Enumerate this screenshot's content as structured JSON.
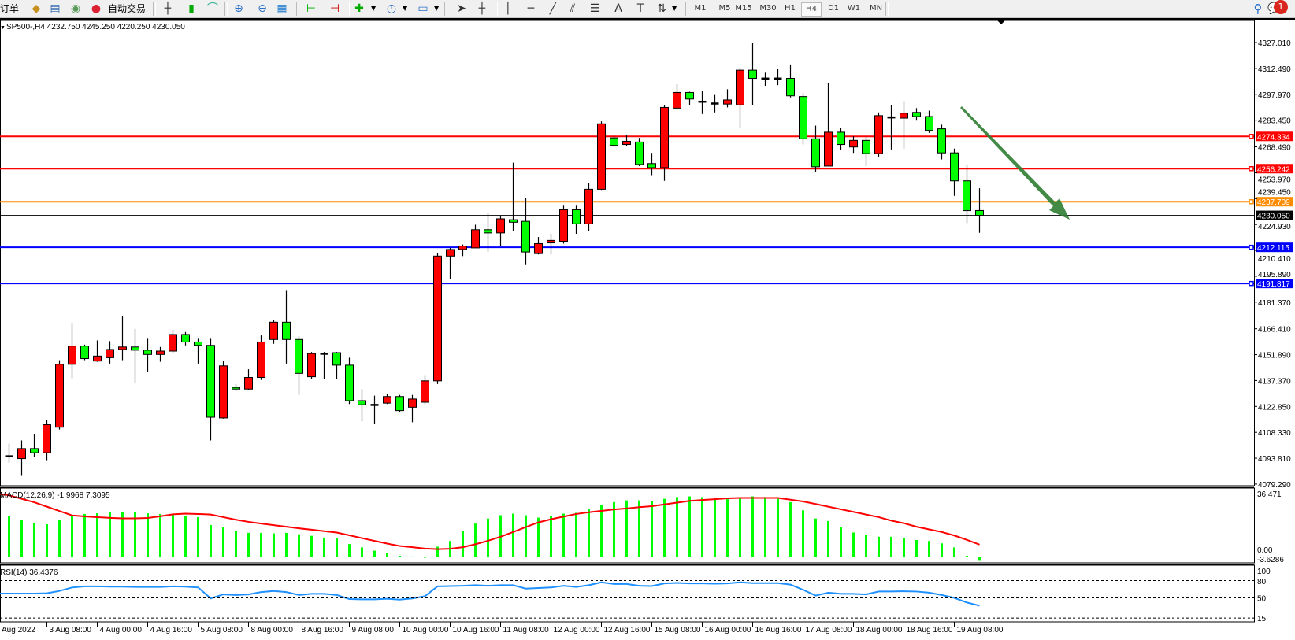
{
  "toolbar": {
    "new_order_label": "订单",
    "auto_trading_label": "自动交易",
    "periods": [
      "M1",
      "M5",
      "M15",
      "M30",
      "H1",
      "H4",
      "D1",
      "W1",
      "MN"
    ],
    "active_period": "H4",
    "notification_count": "1",
    "icons": [
      "book-icon",
      "terminal-icon",
      "signal-icon",
      "auto-trading-icon",
      "bar-chart-icon",
      "candlestick-icon",
      "line-chart-icon",
      "zoom-in-icon",
      "zoom-out-icon",
      "tile-windows-icon",
      "auto-scroll-icon",
      "chart-shift-icon",
      "new-chart-icon",
      "clock-icon",
      "template-icon",
      "cursor-icon",
      "crosshair-icon",
      "vertical-line-icon",
      "horizontal-line-icon",
      "trendline-icon",
      "equidistant-channel-icon",
      "fibonacci-icon",
      "text-icon",
      "text-label-icon",
      "arrows-icon",
      "search-icon",
      "chat-icon"
    ]
  },
  "chart": {
    "symbol_info": "SP500-,H4  4232.750 4245.250 4220.250 4230.050",
    "price_ticks": [
      "4327.010",
      "4312.490",
      "4297.970",
      "4283.450",
      "4268.490",
      "4253.970",
      "4239.450",
      "4224.930",
      "4210.410",
      "4195.890",
      "4181.370",
      "4166.410",
      "4151.890",
      "4137.370",
      "4122.850",
      "4108.330",
      "4093.810",
      "4079.290"
    ],
    "price_range": [
      4079.29,
      4327.01
    ],
    "bullish_color": "#ff0000",
    "bearish_color": "#00ff00",
    "levels": [
      {
        "price": 4274.334,
        "label": "4274.334",
        "color": "#ff0000"
      },
      {
        "price": 4256.242,
        "label": "4256.242",
        "color": "#ff0000"
      },
      {
        "price": 4237.709,
        "label": "4237.709",
        "color": "#ff8c00"
      },
      {
        "price": 4230.05,
        "label": "4230.050",
        "color": "#000000"
      },
      {
        "price": 4212.115,
        "label": "4212.115",
        "color": "#0000ff"
      },
      {
        "price": 4191.817,
        "label": "4191.817",
        "color": "#0000ff"
      }
    ],
    "arrow_color": "#2e7d32",
    "ohlc": [
      [
        4095.0,
        4102.0,
        4091.3,
        4095.0
      ],
      [
        4093.6,
        4103.8,
        4083.9,
        4099.2
      ],
      [
        4099.2,
        4107.5,
        4094.6,
        4096.9
      ],
      [
        4096.9,
        4115.4,
        4092.7,
        4112.6
      ],
      [
        4111.2,
        4148.8,
        4109.9,
        4146.5
      ],
      [
        4146.5,
        4169.7,
        4138.6,
        4156.7
      ],
      [
        4156.7,
        4157.5,
        4148.8,
        4149.7
      ],
      [
        4148.3,
        4159.9,
        4147.9,
        4151.1
      ],
      [
        4150.2,
        4159.5,
        4146.9,
        4154.8
      ],
      [
        4154.8,
        4173.4,
        4148.8,
        4156.2
      ],
      [
        4156.2,
        4166.4,
        4135.8,
        4154.4
      ],
      [
        4154.4,
        4160.8,
        4142.3,
        4152.0
      ],
      [
        4152.0,
        4156.2,
        4147.9,
        4153.9
      ],
      [
        4153.9,
        4165.9,
        4153.0,
        4163.2
      ],
      [
        4163.2,
        4164.6,
        4157.1,
        4159.0
      ],
      [
        4159.0,
        4160.8,
        4146.9,
        4157.1
      ],
      [
        4157.1,
        4160.8,
        4103.8,
        4116.8
      ],
      [
        4116.4,
        4148.3,
        4116.0,
        4145.6
      ],
      [
        4133.5,
        4135.4,
        4131.6,
        4132.6
      ],
      [
        4132.6,
        4143.7,
        4132.1,
        4139.1
      ],
      [
        4139.1,
        4162.7,
        4137.7,
        4159.0
      ],
      [
        4160.4,
        4171.5,
        4158.0,
        4170.1
      ],
      [
        4170.1,
        4187.7,
        4146.9,
        4160.4
      ],
      [
        4160.4,
        4162.2,
        4129.3,
        4141.4
      ],
      [
        4139.5,
        4153.4,
        4138.1,
        4152.5
      ],
      [
        4152.5,
        4153.4,
        4138.1,
        4152.5
      ],
      [
        4153.0,
        4153.4,
        4138.1,
        4146.0
      ],
      [
        4146.0,
        4150.2,
        4124.2,
        4126.1
      ],
      [
        4126.1,
        4132.6,
        4114.5,
        4123.8
      ],
      [
        4123.8,
        4128.9,
        4113.1,
        4123.8
      ],
      [
        4124.7,
        4129.8,
        4124.2,
        4128.4
      ],
      [
        4128.4,
        4129.3,
        4119.6,
        4120.5
      ],
      [
        4122.4,
        4129.3,
        4114.0,
        4127.0
      ],
      [
        4125.2,
        4140.0,
        4124.2,
        4137.2
      ],
      [
        4137.2,
        4209.1,
        4135.4,
        4207.2
      ],
      [
        4207.2,
        4211.8,
        4194.2,
        4210.9
      ],
      [
        4210.9,
        4213.7,
        4207.2,
        4212.8
      ],
      [
        4211.8,
        4224.8,
        4211.8,
        4222.0
      ],
      [
        4222.0,
        4231.3,
        4209.5,
        4220.2
      ],
      [
        4220.2,
        4229.4,
        4212.8,
        4228.1
      ],
      [
        4227.6,
        4259.6,
        4221.1,
        4226.2
      ],
      [
        4226.7,
        4239.6,
        4202.6,
        4209.5
      ],
      [
        4208.6,
        4217.9,
        4208.1,
        4214.2
      ],
      [
        4214.6,
        4219.7,
        4208.1,
        4216.0
      ],
      [
        4215.5,
        4235.5,
        4214.2,
        4233.2
      ],
      [
        4233.2,
        4235.5,
        4219.7,
        4225.3
      ],
      [
        4225.3,
        4248.0,
        4221.1,
        4244.7
      ],
      [
        4244.7,
        4282.8,
        4244.3,
        4281.4
      ],
      [
        4273.5,
        4274.9,
        4268.4,
        4269.3
      ],
      [
        4269.8,
        4274.9,
        4268.8,
        4271.6
      ],
      [
        4271.2,
        4273.5,
        4257.7,
        4258.6
      ],
      [
        4259.1,
        4265.1,
        4252.6,
        4256.8
      ],
      [
        4256.8,
        4292.0,
        4249.4,
        4290.6
      ],
      [
        4290.2,
        4303.6,
        4289.2,
        4299.0
      ],
      [
        4299.0,
        4299.4,
        4292.0,
        4295.3
      ],
      [
        4293.9,
        4299.9,
        4286.9,
        4293.9
      ],
      [
        4292.9,
        4297.6,
        4287.8,
        4292.9
      ],
      [
        4292.5,
        4300.8,
        4290.6,
        4294.8
      ],
      [
        4292.0,
        4312.9,
        4279.0,
        4311.5
      ],
      [
        4311.5,
        4326.8,
        4292.0,
        4306.9
      ],
      [
        4306.9,
        4310.1,
        4302.7,
        4306.9
      ],
      [
        4306.9,
        4312.0,
        4303.1,
        4306.9
      ],
      [
        4306.9,
        4314.7,
        4296.2,
        4297.1
      ],
      [
        4296.7,
        4298.5,
        4269.8,
        4273.0
      ],
      [
        4273.0,
        4280.4,
        4254.5,
        4257.3
      ],
      [
        4257.7,
        4304.5,
        4257.7,
        4276.7
      ],
      [
        4276.7,
        4279.0,
        4266.5,
        4269.8
      ],
      [
        4268.4,
        4274.4,
        4265.1,
        4272.1
      ],
      [
        4272.1,
        4274.4,
        4257.7,
        4264.7
      ],
      [
        4264.7,
        4287.8,
        4262.8,
        4286.0
      ],
      [
        4285.1,
        4292.0,
        4267.0,
        4285.1
      ],
      [
        4284.6,
        4294.3,
        4267.5,
        4287.4
      ],
      [
        4287.8,
        4290.2,
        4283.2,
        4285.5
      ],
      [
        4285.5,
        4288.8,
        4276.3,
        4277.7
      ],
      [
        4278.6,
        4280.9,
        4261.4,
        4265.1
      ],
      [
        4265.1,
        4267.5,
        4241.0,
        4249.4
      ],
      [
        4249.4,
        4258.6,
        4225.7,
        4232.7
      ],
      [
        4232.75,
        4245.25,
        4220.25,
        4230.05
      ]
    ],
    "time_labels": [
      "Aug 2022",
      "3 Aug 08:00",
      "4 Aug 00:00",
      "4 Aug 16:00",
      "5 Aug 08:00",
      "8 Aug 00:00",
      "8 Aug 16:00",
      "9 Aug 08:00",
      "10 Aug 00:00",
      "10 Aug 16:00",
      "11 Aug 08:00",
      "12 Aug 00:00",
      "12 Aug 16:00",
      "15 Aug 08:00",
      "16 Aug 00:00",
      "16 Aug 16:00",
      "17 Aug 08:00",
      "18 Aug 00:00",
      "18 Aug 16:00",
      "19 Aug 08:00"
    ]
  },
  "macd": {
    "label": "MACD(12,26,9) -1.9968 7.3095",
    "axis_max": "36.471",
    "axis_zero": "0.00",
    "axis_min": "-3.6286",
    "histogram_color": "#00ff00",
    "signal_color": "#ff0000",
    "histogram": [
      23.4,
      21.6,
      19.4,
      18.9,
      21.2,
      23.4,
      24.8,
      25.2,
      26.1,
      26.1,
      26.1,
      25.2,
      24.8,
      24.8,
      23.9,
      23.0,
      18.5,
      17.1,
      14.9,
      14.0,
      14.0,
      13.7,
      14.0,
      13.2,
      12.3,
      11.3,
      10.9,
      7.6,
      5.7,
      3.8,
      2.4,
      0.9,
      0.5,
      0.2,
      6.1,
      9.4,
      15.1,
      19.3,
      22.2,
      24.1,
      25.0,
      24.1,
      22.7,
      23.6,
      25.0,
      25.5,
      27.8,
      30.2,
      31.6,
      32.6,
      32.6,
      32.1,
      33.5,
      34.5,
      34.9,
      34.5,
      34.0,
      33.5,
      34.0,
      34.9,
      34.5,
      33.5,
      31.6,
      26.9,
      22.2,
      20.8,
      17.5,
      14.2,
      12.7,
      11.8,
      11.8,
      10.9,
      9.9,
      9.4,
      8.0,
      5.7,
      0.9,
      -1.9968
    ],
    "signal": [
      35.5,
      33.5,
      31.5,
      29.0,
      26.5,
      24.0,
      23.4,
      23.0,
      22.6,
      22.3,
      22.3,
      22.5,
      23.5,
      24.6,
      25.0,
      24.8,
      24.5,
      23.0,
      21.5,
      20.3,
      19.3,
      18.4,
      17.5,
      16.6,
      15.8,
      15.0,
      14.2,
      12.6,
      11.0,
      9.4,
      7.9,
      6.5,
      5.8,
      5.0,
      4.7,
      4.9,
      5.8,
      7.5,
      9.5,
      11.8,
      14.5,
      17.3,
      20.0,
      21.8,
      23.3,
      24.8,
      25.8,
      26.6,
      27.4,
      28.0,
      28.7,
      29.3,
      30.3,
      31.3,
      32.3,
      32.8,
      33.3,
      33.8,
      34.0,
      34.0,
      34.0,
      34.0,
      33.0,
      32.0,
      30.5,
      29.0,
      27.5,
      26.0,
      24.5,
      23.0,
      21.0,
      19.5,
      17.5,
      16.0,
      14.5,
      12.5,
      10.0,
      7.3095
    ]
  },
  "rsi": {
    "label": "RSI(14) 36.4376",
    "levels": [
      "100",
      "80",
      "50",
      "15"
    ],
    "line_color": "#1e90ff",
    "values": [
      57.5,
      57.5,
      57.5,
      58,
      62,
      68,
      70,
      70,
      69.5,
      69.5,
      69,
      69,
      69,
      70,
      69.5,
      68,
      49,
      56,
      55,
      56,
      60,
      62,
      60,
      55,
      57,
      57,
      55,
      48,
      47.5,
      47.5,
      48.5,
      47,
      49,
      53,
      70,
      70.5,
      71,
      72,
      71,
      72,
      72,
      66,
      67,
      68,
      71,
      69,
      72,
      77,
      74,
      74,
      71,
      70.5,
      75,
      76,
      75,
      75,
      74.5,
      75,
      77,
      75.5,
      75.5,
      75.5,
      73,
      64,
      54,
      59,
      57,
      57,
      56,
      61,
      61,
      61.5,
      61,
      59,
      55,
      50,
      42,
      36.4376
    ]
  }
}
